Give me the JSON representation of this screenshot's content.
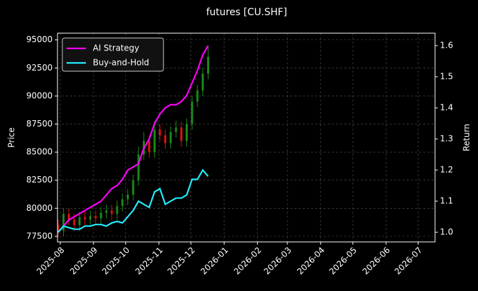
{
  "chart_data": {
    "type": "candlestick",
    "title": "futures [CU.SHF]",
    "ylabel": "Price",
    "y2label": "Return",
    "x": [
      -2,
      3,
      8,
      13,
      18,
      23,
      28,
      33,
      38,
      43,
      48,
      53,
      58,
      63,
      68,
      73,
      78,
      83,
      88,
      93,
      98,
      103,
      108,
      113,
      118,
      123,
      128,
      133,
      138
    ],
    "open": [
      78500,
      78000,
      79500,
      79000,
      78500,
      79200,
      79000,
      79300,
      79100,
      79600,
      79800,
      79500,
      80200,
      80800,
      81200,
      82500,
      84800,
      86000,
      85000,
      87000,
      86500,
      85800,
      86800,
      87200,
      86000,
      87500,
      89500,
      90500,
      92000
    ],
    "high": [
      79000,
      80000,
      80000,
      79500,
      79700,
      79700,
      79800,
      79800,
      80100,
      80300,
      80300,
      80700,
      81300,
      81700,
      83000,
      85500,
      86800,
      86500,
      87800,
      87500,
      87000,
      87300,
      87800,
      87700,
      88000,
      90000,
      91000,
      92500,
      94500
    ],
    "low": [
      77500,
      77500,
      78500,
      78000,
      78000,
      78500,
      78500,
      78600,
      78600,
      79100,
      79000,
      79000,
      79700,
      80300,
      80700,
      82000,
      84300,
      84500,
      84500,
      86000,
      85300,
      85300,
      86300,
      85500,
      85500,
      87000,
      89000,
      90000,
      91500
    ],
    "close": [
      78000,
      79500,
      79000,
      78500,
      79200,
      79000,
      79300,
      79100,
      79600,
      79800,
      79500,
      80200,
      80800,
      81200,
      82500,
      84800,
      86000,
      85000,
      87000,
      86500,
      85800,
      86800,
      87200,
      86000,
      87500,
      89500,
      90500,
      92000,
      93500
    ],
    "up_color": "#1a8a1a",
    "down_color": "#e01010",
    "series": [
      {
        "name": "AI Strategy",
        "color": "#ff00ff",
        "axis": "y2",
        "values": [
          1.0,
          1.02,
          1.04,
          1.05,
          1.06,
          1.07,
          1.08,
          1.09,
          1.1,
          1.12,
          1.14,
          1.15,
          1.17,
          1.2,
          1.21,
          1.22,
          1.27,
          1.3,
          1.35,
          1.38,
          1.4,
          1.41,
          1.41,
          1.42,
          1.44,
          1.48,
          1.52,
          1.57,
          1.6
        ]
      },
      {
        "name": "Buy-and-Hold",
        "color": "#22eeff",
        "axis": "y2",
        "values": [
          1.0,
          1.02,
          1.015,
          1.01,
          1.01,
          1.02,
          1.02,
          1.025,
          1.025,
          1.02,
          1.03,
          1.035,
          1.03,
          1.05,
          1.07,
          1.1,
          1.09,
          1.08,
          1.13,
          1.14,
          1.09,
          1.1,
          1.11,
          1.11,
          1.12,
          1.17,
          1.17,
          1.2,
          1.18
        ]
      }
    ],
    "xlim": [
      -2.6,
      349.8
    ],
    "xticks": [
      {
        "value": 0,
        "label": "2025-08"
      },
      {
        "value": 31,
        "label": "2025-09"
      },
      {
        "value": 61,
        "label": "2025-10"
      },
      {
        "value": 92,
        "label": "2025-11"
      },
      {
        "value": 122,
        "label": "2025-12"
      },
      {
        "value": 153,
        "label": "2026-01"
      },
      {
        "value": 184,
        "label": "2026-02"
      },
      {
        "value": 212,
        "label": "2026-03"
      },
      {
        "value": 243,
        "label": "2026-04"
      },
      {
        "value": 273,
        "label": "2026-05"
      },
      {
        "value": 304,
        "label": "2026-06"
      },
      {
        "value": 334,
        "label": "2026-07"
      }
    ],
    "ylim": [
      77000,
      95600
    ],
    "yticks": [
      77500,
      80000,
      82500,
      85000,
      87500,
      90000,
      92500,
      95000
    ],
    "y2lim": [
      0.969,
      1.64
    ],
    "y2ticks": [
      {
        "value": 1,
        "label": "1.0"
      },
      1.1,
      1.2,
      1.3,
      1.4,
      1.5,
      1.6
    ],
    "grid": true,
    "legend": "upper left"
  }
}
